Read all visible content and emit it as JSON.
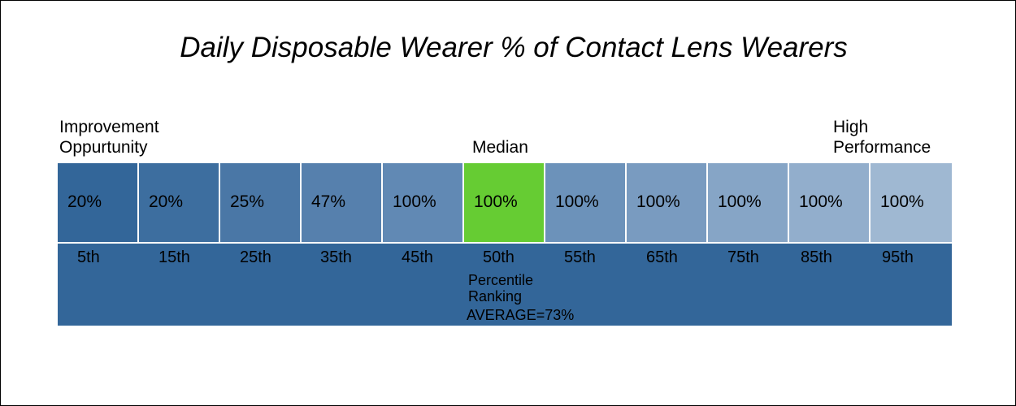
{
  "chart_data": {
    "type": "table",
    "title": "Daily Disposable Wearer % of Contact Lens Wearers",
    "left_label": "Improvement\nOppurtunity",
    "median_label": "Median",
    "right_label": "High\nPerformance",
    "categories": [
      "5th",
      "15th",
      "25th",
      "35th",
      "45th",
      "50th",
      "55th",
      "65th",
      "75th",
      "85th",
      "95th"
    ],
    "values": [
      20,
      20,
      25,
      47,
      100,
      100,
      100,
      100,
      100,
      100,
      100
    ],
    "value_labels": [
      "20%",
      "20%",
      "25%",
      "47%",
      "100%",
      "100%",
      "100%",
      "100%",
      "100%",
      "100%",
      "100%"
    ],
    "cell_colors": [
      "#336699",
      "#3d6e9f",
      "#4a77a6",
      "#5680ad",
      "#6189b4",
      "#66cc33",
      "#6c92ba",
      "#799bc0",
      "#86a5c6",
      "#92aecc",
      "#9fb8d2"
    ],
    "highlight_index": 5,
    "xlabel": "Percentile\nRanking",
    "average_label": "AVERAGE=73%",
    "band_color": "#336699"
  }
}
